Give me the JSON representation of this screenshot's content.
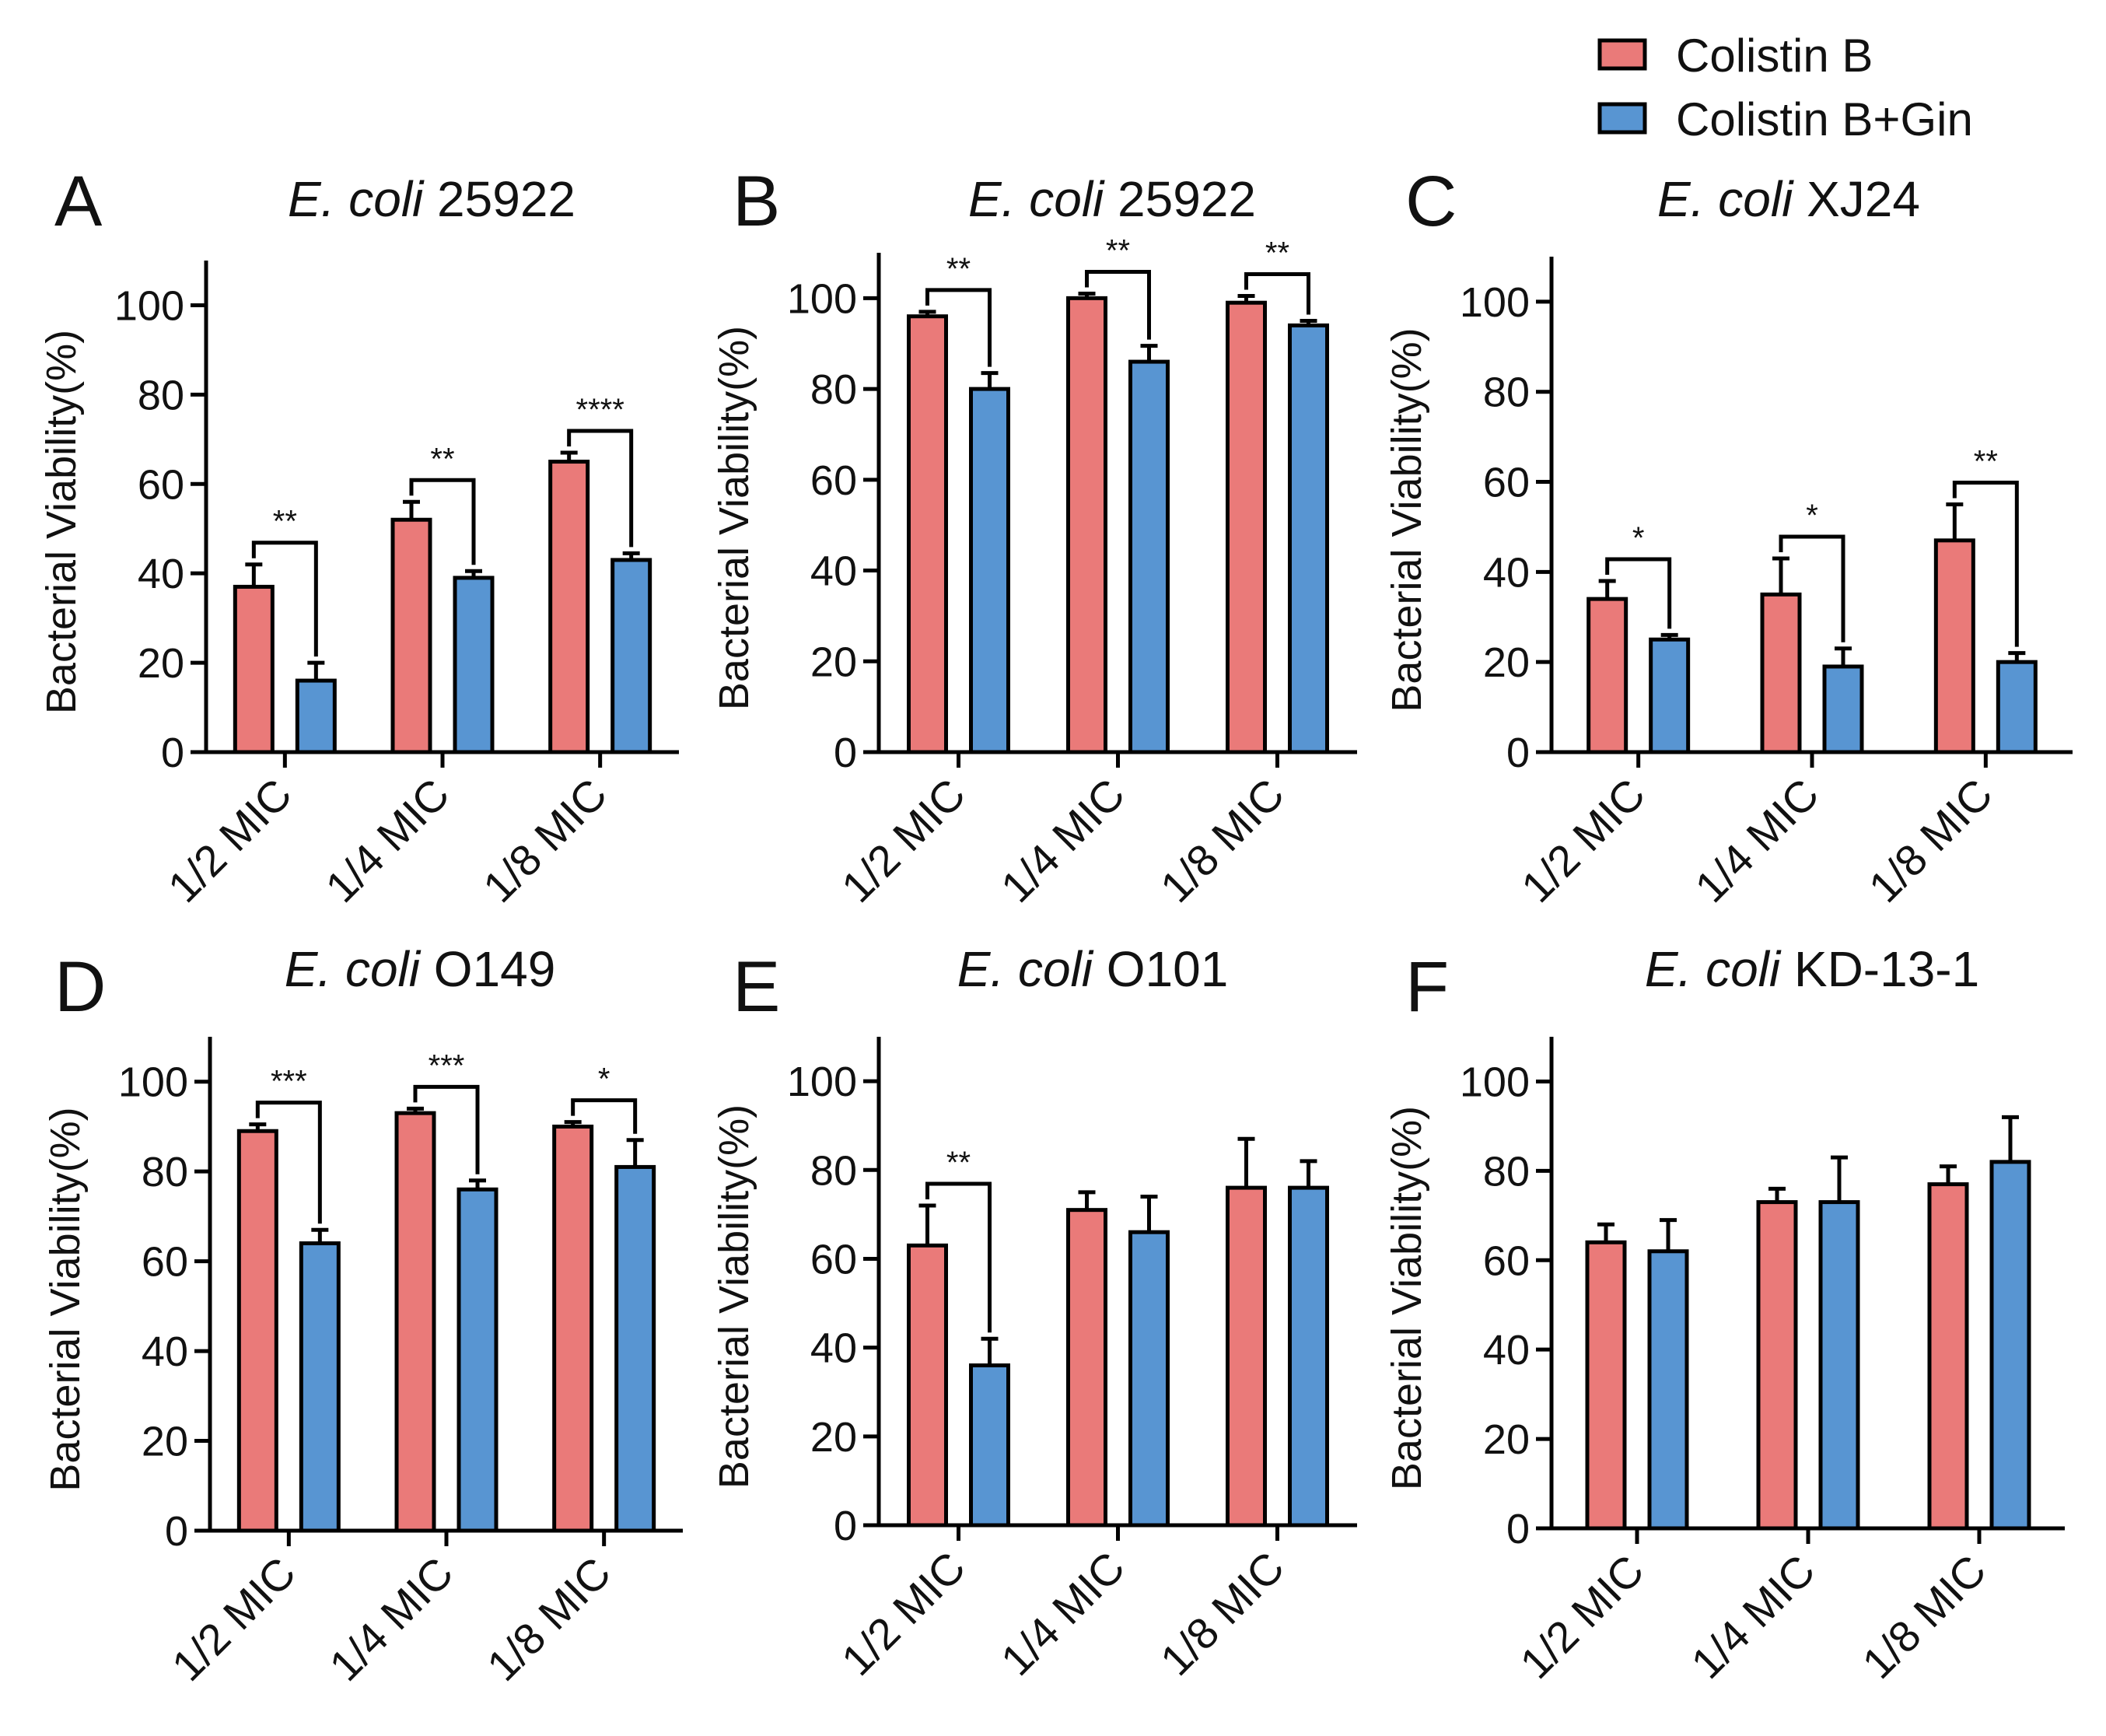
{
  "legend": [
    {
      "name": "Colistin B",
      "color": "#ea7a79"
    },
    {
      "name": "Colistin B+Gin",
      "color": "#5895d2"
    }
  ],
  "chart_data": [
    {
      "panel": "A",
      "type": "bar",
      "title_italic": "E. coli",
      "title_strain": "25922",
      "ylabel": "Bacterial Viability(%)",
      "ylim": [
        0,
        110
      ],
      "yticks": [
        0,
        20,
        40,
        60,
        80,
        100
      ],
      "categories": [
        "1/2 MIC",
        "1/4 MIC",
        "1/8 MIC"
      ],
      "series": [
        {
          "name": "Colistin B",
          "values": [
            37,
            52,
            65
          ],
          "errors": [
            5,
            4,
            2
          ]
        },
        {
          "name": "Colistin B+Gin",
          "values": [
            16,
            39,
            43
          ],
          "errors": [
            4,
            1.5,
            1.5
          ]
        }
      ],
      "significance": [
        "**",
        "**",
        "****"
      ]
    },
    {
      "panel": "B",
      "type": "bar",
      "title_italic": "E. coli",
      "title_strain": "25922",
      "ylabel": "Bacterial Viability(%)",
      "ylim": [
        0,
        110
      ],
      "yticks": [
        0,
        20,
        40,
        60,
        80,
        100
      ],
      "categories": [
        "1/2 MIC",
        "1/4 MIC",
        "1/8 MIC"
      ],
      "series": [
        {
          "name": "Colistin B",
          "values": [
            96,
            100,
            99
          ],
          "errors": [
            1,
            1,
            1.5
          ]
        },
        {
          "name": "Colistin B+Gin",
          "values": [
            80,
            86,
            94
          ],
          "errors": [
            3.5,
            3.5,
            1
          ]
        }
      ],
      "significance": [
        "**",
        "**",
        "**"
      ]
    },
    {
      "panel": "C",
      "type": "bar",
      "title_italic": "E. coli",
      "title_strain": "XJ24",
      "ylabel": "Bacterial Viability(%)",
      "ylim": [
        0,
        110
      ],
      "yticks": [
        0,
        20,
        40,
        60,
        80,
        100
      ],
      "categories": [
        "1/2 MIC",
        "1/4 MIC",
        "1/8 MIC"
      ],
      "series": [
        {
          "name": "Colistin B",
          "values": [
            34,
            35,
            47
          ],
          "errors": [
            4,
            8,
            8
          ]
        },
        {
          "name": "Colistin B+Gin",
          "values": [
            25,
            19,
            20
          ],
          "errors": [
            1,
            4,
            2
          ]
        }
      ],
      "significance": [
        "*",
        "*",
        "**"
      ]
    },
    {
      "panel": "D",
      "type": "bar",
      "title_italic": "E. coli",
      "title_strain": "O149",
      "ylabel": "Bacterial Viability(%)",
      "ylim": [
        0,
        110
      ],
      "yticks": [
        0,
        20,
        40,
        60,
        80,
        100
      ],
      "categories": [
        "1/2 MIC",
        "1/4 MIC",
        "1/8 MIC"
      ],
      "series": [
        {
          "name": "Colistin B",
          "values": [
            89,
            93,
            90
          ],
          "errors": [
            1.5,
            1,
            1
          ]
        },
        {
          "name": "Colistin B+Gin",
          "values": [
            64,
            76,
            81
          ],
          "errors": [
            3,
            2,
            6
          ]
        }
      ],
      "significance": [
        "***",
        "***",
        "*"
      ]
    },
    {
      "panel": "E",
      "type": "bar",
      "title_italic": "E. coli",
      "title_strain": "O101",
      "ylabel": "Bacterial Viability(%)",
      "ylim": [
        0,
        110
      ],
      "yticks": [
        0,
        20,
        40,
        60,
        80,
        100
      ],
      "categories": [
        "1/2 MIC",
        "1/4 MIC",
        "1/8 MIC"
      ],
      "series": [
        {
          "name": "Colistin B",
          "values": [
            63,
            71,
            76
          ],
          "errors": [
            9,
            4,
            11
          ]
        },
        {
          "name": "Colistin B+Gin",
          "values": [
            36,
            66,
            76
          ],
          "errors": [
            6,
            8,
            6
          ]
        }
      ],
      "significance": [
        "**",
        "",
        ""
      ]
    },
    {
      "panel": "F",
      "type": "bar",
      "title_italic": "E. coli",
      "title_strain": "KD-13-1",
      "ylabel": "Bacterial Viability(%)",
      "ylim": [
        0,
        110
      ],
      "yticks": [
        0,
        20,
        40,
        60,
        80,
        100
      ],
      "categories": [
        "1/2 MIC",
        "1/4 MIC",
        "1/8 MIC"
      ],
      "series": [
        {
          "name": "Colistin B",
          "values": [
            64,
            73,
            77
          ],
          "errors": [
            4,
            3,
            4
          ]
        },
        {
          "name": "Colistin B+Gin",
          "values": [
            62,
            73,
            82
          ],
          "errors": [
            7,
            10,
            10
          ]
        }
      ],
      "significance": [
        "",
        "",
        ""
      ]
    }
  ]
}
